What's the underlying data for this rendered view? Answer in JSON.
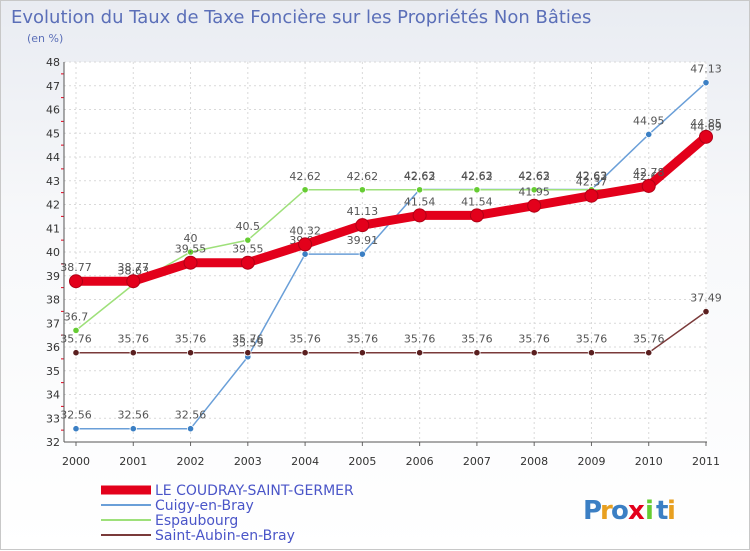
{
  "chart_data": {
    "type": "line",
    "title": "Evolution du Taux de Taxe Foncière sur les Propriétés Non Bâties",
    "subtitle": "(en %)",
    "xlabel": "",
    "ylabel": "",
    "categories": [
      "2000",
      "2001",
      "2002",
      "2003",
      "2004",
      "2005",
      "2006",
      "2007",
      "2008",
      "2009",
      "2010",
      "2011"
    ],
    "ylim": [
      32,
      48
    ],
    "yticks": [
      "32",
      "33",
      "34",
      "35",
      "36",
      "37",
      "38",
      "39",
      "40",
      "41",
      "42",
      "43",
      "44",
      "45",
      "46",
      "47",
      "48"
    ],
    "grid": true,
    "series": [
      {
        "name": "Cuigy-en-Bray",
        "color": "#6a9fd8",
        "marker_color": "#3b7fc4",
        "values": [
          32.56,
          32.56,
          32.56,
          35.59,
          39.91,
          39.91,
          42.63,
          42.63,
          42.63,
          42.63,
          44.95,
          47.13
        ],
        "labels": [
          "32.56",
          "32.56",
          "32.56",
          "35.59",
          "39.91",
          "39.91",
          "42.63",
          "42.63",
          "42.63",
          "42.63",
          "44.95",
          "47.13"
        ]
      },
      {
        "name": "Espaubourg",
        "color": "#9ee07a",
        "marker_color": "#66cc33",
        "values": [
          36.7,
          38.63,
          40.0,
          40.5,
          42.62,
          42.62,
          42.62,
          42.62,
          42.62,
          42.62,
          42.62,
          44.69
        ],
        "labels": [
          "36.7",
          "38.63",
          "40",
          "40.5",
          "42.62",
          "42.62",
          "42.62",
          "42.62",
          "42.62",
          "42.62",
          "42.62",
          "44.69"
        ]
      },
      {
        "name": "Saint-Aubin-en-Bray",
        "color": "#7a3a3a",
        "marker_color": "#5a1f1f",
        "values": [
          35.76,
          35.76,
          35.76,
          35.76,
          35.76,
          35.76,
          35.76,
          35.76,
          35.76,
          35.76,
          35.76,
          37.49
        ],
        "labels": [
          "35.76",
          "35.76",
          "35.76",
          "35.76",
          "35.76",
          "35.76",
          "35.76",
          "35.76",
          "35.76",
          "35.76",
          "35.76",
          "37.49"
        ]
      },
      {
        "name": "LE COUDRAY-SAINT-GERMER",
        "color": "#e3001b",
        "marker_color": "#e3001b",
        "values": [
          38.77,
          38.77,
          39.55,
          39.55,
          40.32,
          41.13,
          41.54,
          41.54,
          41.95,
          42.37,
          42.78,
          44.85
        ],
        "labels": [
          "38.77",
          "38.77",
          "39.55",
          "39.55",
          "40.32",
          "41.13",
          "41.54",
          "41.54",
          "41.95",
          "42.37",
          "42.78",
          "44.85"
        ]
      }
    ],
    "legend_order": [
      "LE COUDRAY-SAINT-GERMER",
      "Cuigy-en-Bray",
      "Espaubourg",
      "Saint-Aubin-en-Bray"
    ],
    "legend_position": "bottom-left"
  },
  "branding": {
    "logo_text": "Proxiti",
    "logo_letters": [
      "P",
      "r",
      "o",
      "x",
      "i",
      "t",
      "i"
    ],
    "logo_colors": [
      "#3b7fc4",
      "#e8a020",
      "#3b7fc4",
      "#e3001b",
      "#66cc33",
      "#3b7fc4",
      "#e8a020"
    ]
  }
}
